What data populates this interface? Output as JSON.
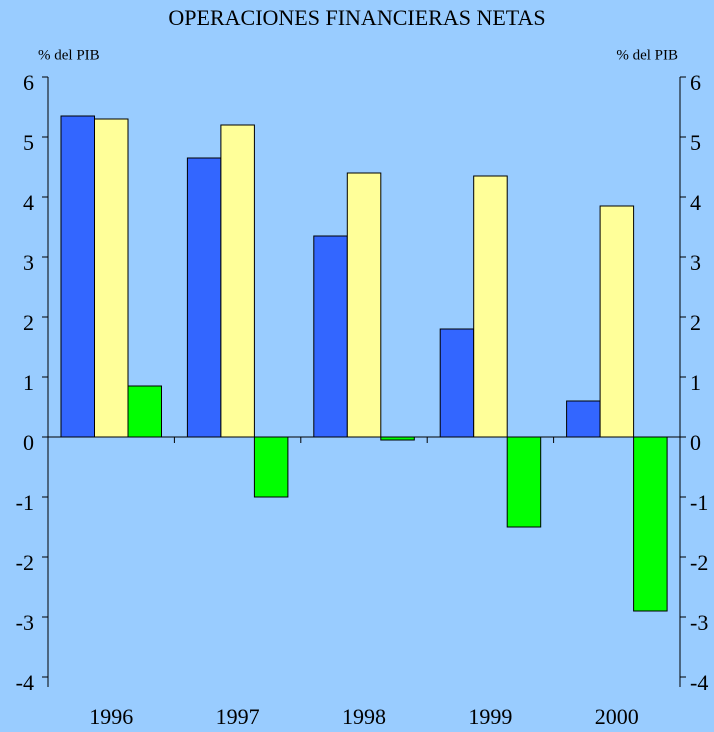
{
  "chart_data": {
    "type": "bar",
    "title": "OPERACIONES FINANCIERAS NETAS",
    "ylabel": "% del PIB",
    "y2label": "% del PIB",
    "categories": [
      "1996",
      "1997",
      "1998",
      "1999",
      "2000"
    ],
    "series": [
      {
        "color": "#3366ff",
        "values": [
          5.35,
          4.65,
          3.35,
          1.8,
          0.6
        ]
      },
      {
        "color": "#ffff99",
        "values": [
          5.3,
          5.2,
          4.4,
          4.35,
          3.85
        ]
      },
      {
        "color": "#00ff00",
        "values": [
          0.85,
          -1.0,
          -0.05,
          -1.5,
          -2.9
        ]
      }
    ],
    "ylim": [
      -4,
      6
    ],
    "yticks": [
      -4,
      -3,
      -2,
      -1,
      0,
      1,
      2,
      3,
      4,
      5,
      6
    ],
    "y2lim": [
      -4,
      6
    ],
    "y2ticks": [
      -4,
      -3,
      -2,
      -1,
      0,
      1,
      2,
      3,
      4,
      5,
      6
    ],
    "background": "#99ccff"
  }
}
